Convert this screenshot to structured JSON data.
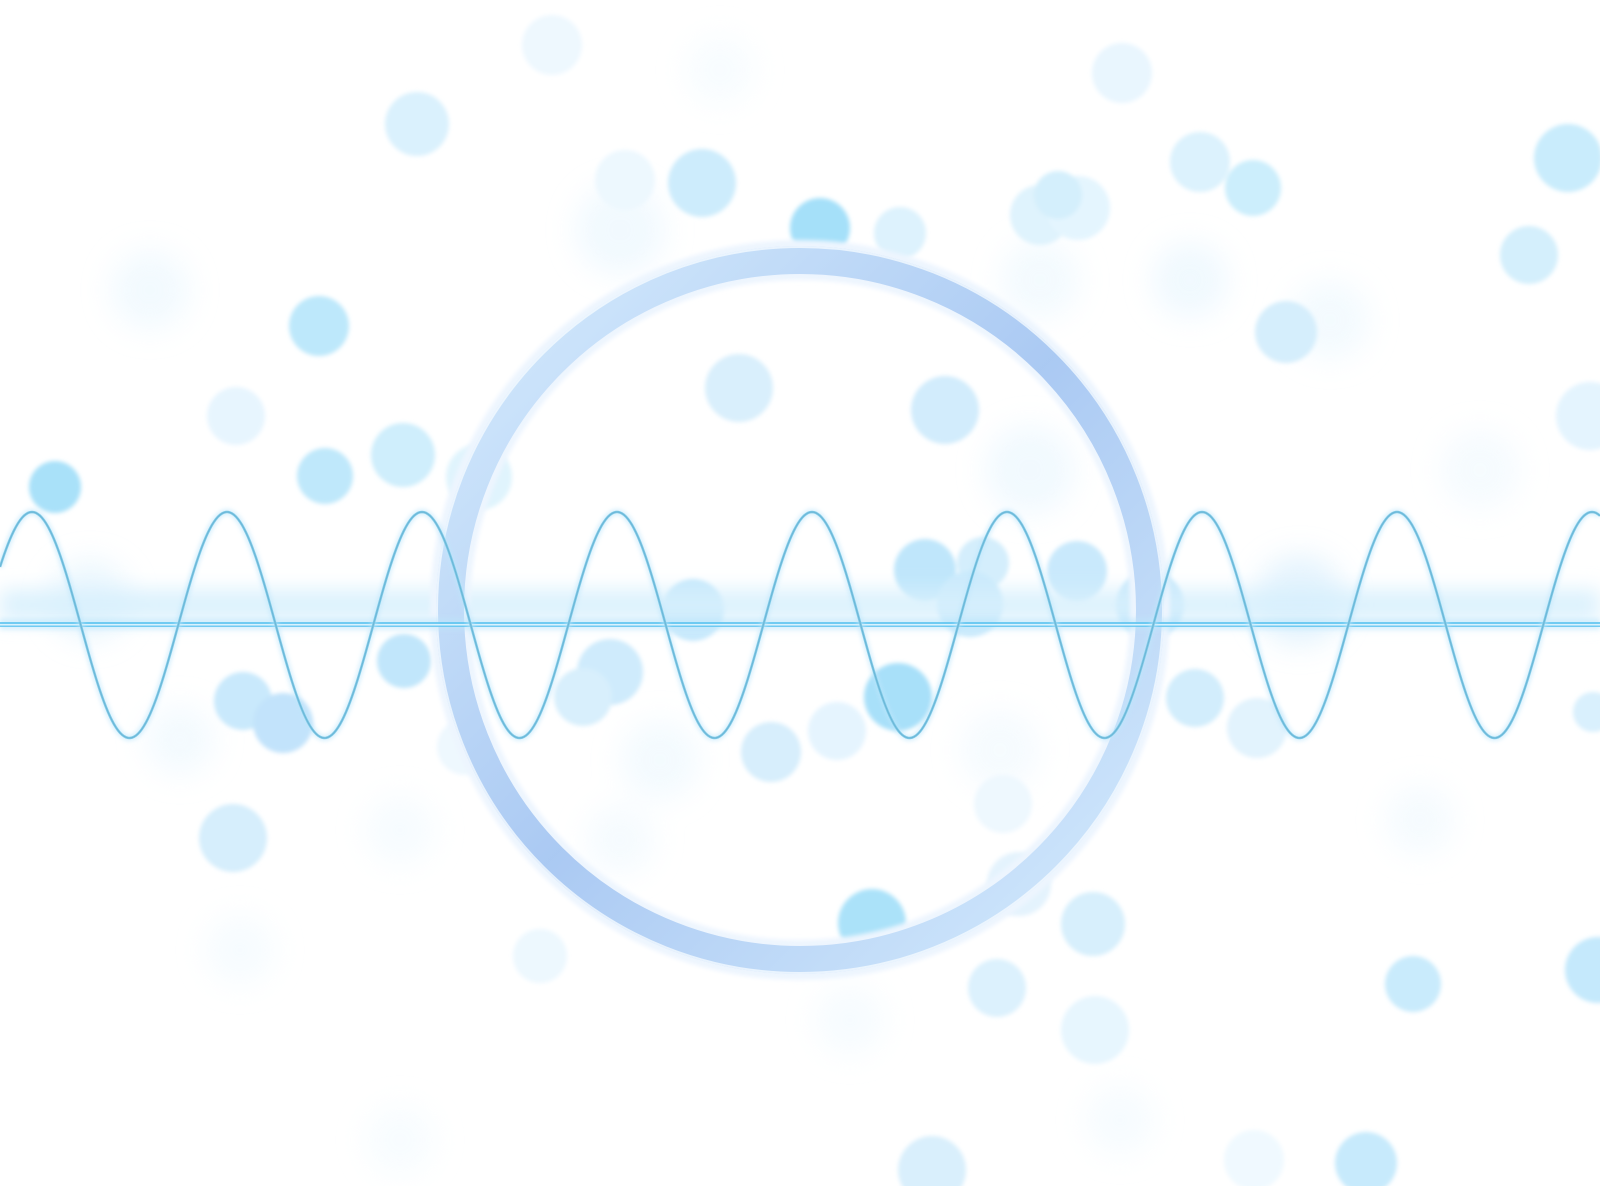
{
  "artwork": {
    "subject": "abstract-wave-bokeh",
    "colors": {
      "background": "#ffffff",
      "wave": "#7fcbe8",
      "baseline": "#5ec4f0",
      "glow": "#b8e4fb",
      "ring_outer": "#cfe6fb",
      "ring_inner": "#a9c8f0",
      "bubble_light": "#dff2fd",
      "bubble_mid": "#bde6fb",
      "bubble_strong": "#8fd6f6"
    },
    "wave_cycles": 8
  }
}
